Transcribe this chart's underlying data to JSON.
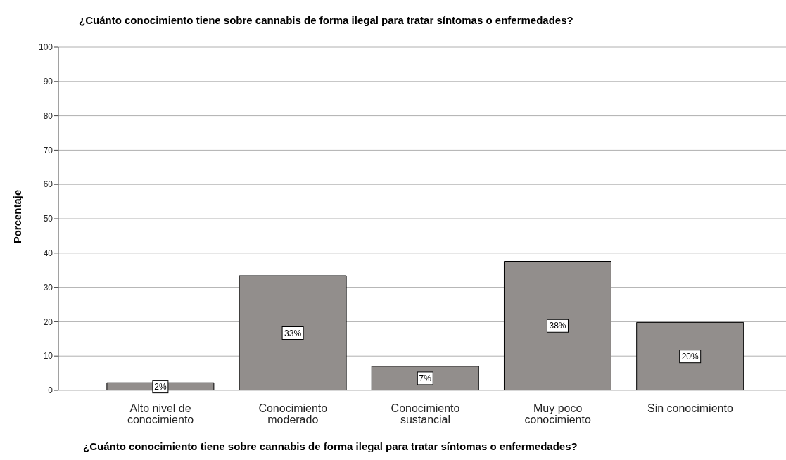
{
  "chart_data": {
    "type": "bar",
    "title": "¿Cuánto conocimiento tiene sobre cannabis de forma ilegal para tratar síntomas o enfermedades?",
    "xlabel": "¿Cuánto conocimiento tiene sobre cannabis de forma ilegal para tratar síntomas o enfermedades?",
    "ylabel": "Porcentaje",
    "categories": [
      "Alto nivel de conocimiento",
      "Conocimiento moderado",
      "Conocimiento sustancial",
      "Muy poco conocimiento",
      "Sin conocimiento"
    ],
    "values": [
      2.2,
      33.4,
      7.0,
      37.6,
      19.8
    ],
    "value_labels": [
      "2%",
      "33%",
      "7%",
      "38%",
      "20%"
    ],
    "color": "#928e8c",
    "ylim": [
      0,
      100
    ],
    "yticks": [
      0,
      10,
      20,
      30,
      40,
      50,
      60,
      70,
      80,
      90,
      100
    ],
    "grid": "y"
  }
}
